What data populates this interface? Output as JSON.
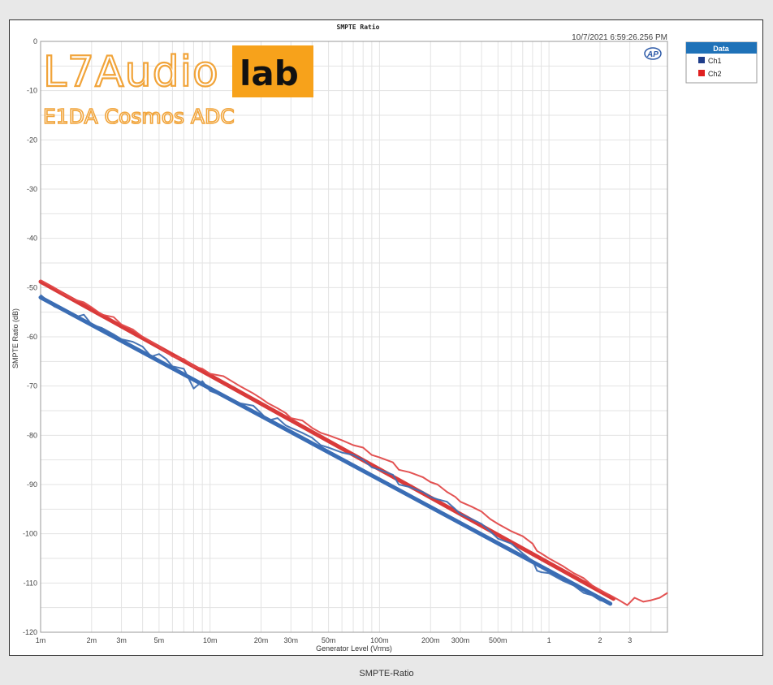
{
  "page_caption": "SMPTE-Ratio",
  "chart_data": {
    "type": "line",
    "title": "SMPTE Ratio",
    "timestamp": "10/7/2021 6:59:26.256 PM",
    "xlabel": "Generator Level (Vrms)",
    "ylabel": "SMPTE Ratio (dB)",
    "xscale": "log",
    "xlim": [
      0.001,
      5
    ],
    "ylim": [
      -120,
      0
    ],
    "grid": true,
    "y_ticks": [
      {
        "value": 0,
        "label": "0"
      },
      {
        "value": -10,
        "label": "-10"
      },
      {
        "value": -20,
        "label": "-20"
      },
      {
        "value": -30,
        "label": "-30"
      },
      {
        "value": -40,
        "label": "-40"
      },
      {
        "value": -50,
        "label": "-50"
      },
      {
        "value": -60,
        "label": "-60"
      },
      {
        "value": -70,
        "label": "-70"
      },
      {
        "value": -80,
        "label": "-80"
      },
      {
        "value": -90,
        "label": "-90"
      },
      {
        "value": -100,
        "label": "-100"
      },
      {
        "value": -110,
        "label": "-110"
      },
      {
        "value": -120,
        "label": "-120"
      }
    ],
    "x_ticks": [
      {
        "value": 0.001,
        "label": "1m"
      },
      {
        "value": 0.002,
        "label": "2m"
      },
      {
        "value": 0.003,
        "label": "3m"
      },
      {
        "value": 0.005,
        "label": "5m"
      },
      {
        "value": 0.01,
        "label": "10m"
      },
      {
        "value": 0.02,
        "label": "20m"
      },
      {
        "value": 0.03,
        "label": "30m"
      },
      {
        "value": 0.05,
        "label": "50m"
      },
      {
        "value": 0.1,
        "label": "100m"
      },
      {
        "value": 0.2,
        "label": "200m"
      },
      {
        "value": 0.3,
        "label": "300m"
      },
      {
        "value": 0.5,
        "label": "500m"
      },
      {
        "value": 1,
        "label": "1"
      },
      {
        "value": 2,
        "label": "2"
      },
      {
        "value": 3,
        "label": "3"
      }
    ],
    "legend": {
      "title": "Data",
      "placement": "outside-right",
      "entries": [
        {
          "name": "Ch1",
          "color": "#1f3d8a"
        },
        {
          "name": "Ch2",
          "color": "#e02020"
        }
      ]
    },
    "series": [
      {
        "name": "Ch1",
        "color": "#3f6fb2",
        "points": [
          [
            0.001,
            -51.5
          ],
          [
            0.0012,
            -53.8
          ],
          [
            0.0014,
            -54.8
          ],
          [
            0.0016,
            -56
          ],
          [
            0.0018,
            -55.5
          ],
          [
            0.002,
            -57.5
          ],
          [
            0.0023,
            -58.2
          ],
          [
            0.0027,
            -59.5
          ],
          [
            0.003,
            -60.5
          ],
          [
            0.0035,
            -61
          ],
          [
            0.004,
            -62
          ],
          [
            0.0045,
            -64
          ],
          [
            0.005,
            -63.5
          ],
          [
            0.0055,
            -64.5
          ],
          [
            0.006,
            -66
          ],
          [
            0.007,
            -66.5
          ],
          [
            0.008,
            -70.5
          ],
          [
            0.009,
            -69
          ],
          [
            0.01,
            -71
          ],
          [
            0.012,
            -72
          ],
          [
            0.015,
            -73.5
          ],
          [
            0.018,
            -74
          ],
          [
            0.02,
            -75.5
          ],
          [
            0.022,
            -77
          ],
          [
            0.025,
            -76.5
          ],
          [
            0.028,
            -78
          ],
          [
            0.03,
            -78.5
          ],
          [
            0.035,
            -79.5
          ],
          [
            0.04,
            -80.5
          ],
          [
            0.045,
            -82
          ],
          [
            0.05,
            -82.5
          ],
          [
            0.06,
            -83.5
          ],
          [
            0.07,
            -84
          ],
          [
            0.08,
            -85
          ],
          [
            0.09,
            -86.5
          ],
          [
            0.1,
            -87
          ],
          [
            0.12,
            -88
          ],
          [
            0.13,
            -90
          ],
          [
            0.15,
            -90.5
          ],
          [
            0.18,
            -91.5
          ],
          [
            0.2,
            -92.5
          ],
          [
            0.22,
            -93
          ],
          [
            0.25,
            -93.5
          ],
          [
            0.28,
            -95
          ],
          [
            0.3,
            -96
          ],
          [
            0.35,
            -97
          ],
          [
            0.4,
            -98
          ],
          [
            0.45,
            -99.5
          ],
          [
            0.5,
            -101
          ],
          [
            0.6,
            -102
          ],
          [
            0.7,
            -104
          ],
          [
            0.8,
            -105.5
          ],
          [
            0.85,
            -107.5
          ],
          [
            0.9,
            -107.8
          ],
          [
            1.0,
            -108
          ],
          [
            1.2,
            -109.5
          ],
          [
            1.4,
            -110.5
          ],
          [
            1.6,
            -112
          ],
          [
            1.8,
            -112.5
          ],
          [
            2.0,
            -113.5
          ],
          [
            2.3,
            -114
          ]
        ]
      },
      {
        "name": "Ch2",
        "color": "#e24a4a",
        "points": [
          [
            0.001,
            -48.5
          ],
          [
            0.0012,
            -50
          ],
          [
            0.0014,
            -51.5
          ],
          [
            0.0016,
            -52.5
          ],
          [
            0.0018,
            -53
          ],
          [
            0.002,
            -54
          ],
          [
            0.0023,
            -55.5
          ],
          [
            0.0027,
            -56
          ],
          [
            0.003,
            -57.5
          ],
          [
            0.0035,
            -58.5
          ],
          [
            0.004,
            -60
          ],
          [
            0.0045,
            -61
          ],
          [
            0.005,
            -62
          ],
          [
            0.0055,
            -63
          ],
          [
            0.006,
            -64
          ],
          [
            0.007,
            -64.5
          ],
          [
            0.008,
            -66
          ],
          [
            0.009,
            -66.5
          ],
          [
            0.01,
            -67.5
          ],
          [
            0.012,
            -68
          ],
          [
            0.015,
            -70
          ],
          [
            0.018,
            -71.5
          ],
          [
            0.02,
            -72.5
          ],
          [
            0.022,
            -73.5
          ],
          [
            0.025,
            -74.5
          ],
          [
            0.028,
            -75.5
          ],
          [
            0.03,
            -76.5
          ],
          [
            0.035,
            -77
          ],
          [
            0.04,
            -78.5
          ],
          [
            0.045,
            -79.5
          ],
          [
            0.05,
            -80
          ],
          [
            0.06,
            -81
          ],
          [
            0.07,
            -82
          ],
          [
            0.08,
            -82.5
          ],
          [
            0.09,
            -84
          ],
          [
            0.1,
            -84.5
          ],
          [
            0.12,
            -85.5
          ],
          [
            0.13,
            -87
          ],
          [
            0.15,
            -87.5
          ],
          [
            0.18,
            -88.5
          ],
          [
            0.2,
            -89.5
          ],
          [
            0.22,
            -90
          ],
          [
            0.25,
            -91.5
          ],
          [
            0.28,
            -92.5
          ],
          [
            0.3,
            -93.5
          ],
          [
            0.35,
            -94.5
          ],
          [
            0.4,
            -95.5
          ],
          [
            0.45,
            -97
          ],
          [
            0.5,
            -98
          ],
          [
            0.6,
            -99.5
          ],
          [
            0.7,
            -100.5
          ],
          [
            0.8,
            -102
          ],
          [
            0.85,
            -103.5
          ],
          [
            0.9,
            -104
          ],
          [
            1.0,
            -105
          ],
          [
            1.2,
            -106.5
          ],
          [
            1.4,
            -108
          ],
          [
            1.6,
            -109
          ],
          [
            1.8,
            -110.5
          ],
          [
            2.0,
            -111.5
          ],
          [
            2.3,
            -112.5
          ],
          [
            2.6,
            -113.5
          ],
          [
            2.9,
            -114.5
          ],
          [
            3.2,
            -113
          ],
          [
            3.6,
            -113.8
          ],
          [
            4.0,
            -113.5
          ],
          [
            4.5,
            -113
          ],
          [
            5.0,
            -112
          ]
        ]
      }
    ]
  },
  "watermark": {
    "brand": "L7Audio",
    "brand_badge": "lab",
    "subtitle": "E1DA Cosmos ADC",
    "logo_text": "AP",
    "accent_color": "#f1a43a"
  }
}
